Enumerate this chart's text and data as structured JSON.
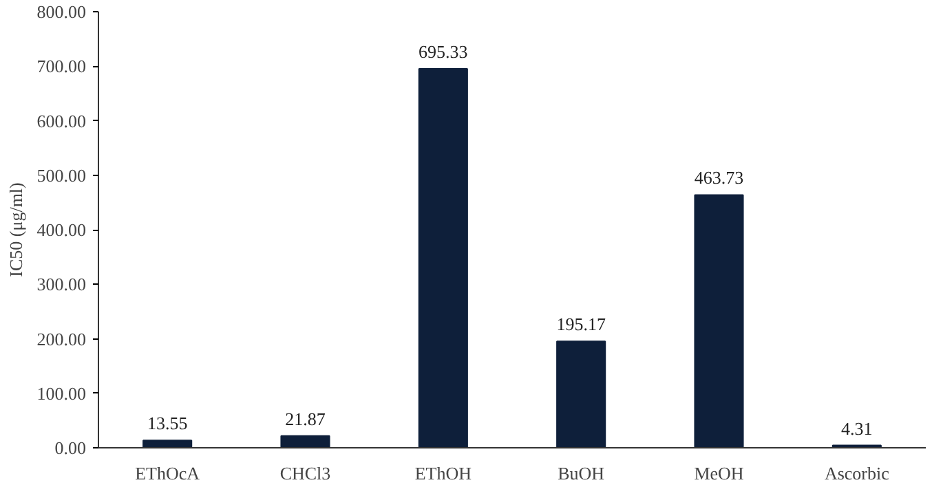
{
  "chart_data": {
    "type": "bar",
    "ylabel": "IC50 (μg/ml)",
    "categories": [
      "EThOcA",
      "CHCl3",
      "EThOH",
      "BuOH",
      "MeOH",
      "Ascorbic"
    ],
    "values": [
      13.55,
      21.87,
      695.33,
      195.17,
      463.73,
      4.31
    ],
    "color": "#0e1f3a",
    "ylim": [
      0,
      800
    ],
    "yticks": [
      {
        "value": 0,
        "label": "0.00"
      },
      {
        "value": 100,
        "label": "100.00"
      },
      {
        "value": 200,
        "label": "200.00"
      },
      {
        "value": 300,
        "label": "300.00"
      },
      {
        "value": 400,
        "label": "400.00"
      },
      {
        "value": 500,
        "label": "500.00"
      },
      {
        "value": 600,
        "label": "600.00"
      },
      {
        "value": 700,
        "label": "700.00"
      },
      {
        "value": 800,
        "label": "800.00"
      }
    ],
    "data_labels": true,
    "grid": false
  }
}
